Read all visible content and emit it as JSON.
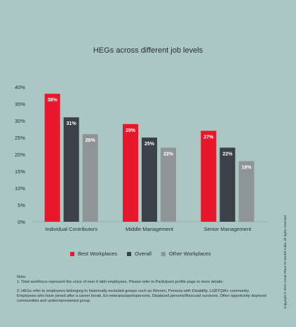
{
  "colors": {
    "background": "#aac7c4",
    "best": "#e8172b",
    "overall": "#3b4148",
    "other": "#8f9597"
  },
  "chart_data": {
    "type": "bar",
    "title": "HEGs across different job levels",
    "categories": [
      "Individual Contributors",
      "Middle Management",
      "Senior Management"
    ],
    "series": [
      {
        "name": "Best Workplaces",
        "values": [
          38,
          29,
          27
        ],
        "labels": [
          "38%",
          "29%",
          "27%"
        ]
      },
      {
        "name": "Overall",
        "values": [
          31,
          25,
          22
        ],
        "labels": [
          "31%",
          "25%",
          "22%"
        ]
      },
      {
        "name": "Other Workplaces",
        "values": [
          26,
          22,
          18
        ],
        "labels": [
          "26%",
          "22%",
          "18%"
        ]
      }
    ],
    "yticks": [
      "0%",
      "5%",
      "10%",
      "15%",
      "20%",
      "25%",
      "30%",
      "35%",
      "40%"
    ],
    "ylim": [
      0,
      40
    ],
    "grid": false,
    "legend_position": "bottom"
  },
  "notes": {
    "heading": "Note:",
    "line1": "1: Total workforce represent the voice of over 6 lakh employees. Please refer to Participant profile page to more details.",
    "line2": "2: HEGs refer to employees belonging to historically excluded groups such as Women, Persons with Disability, LGBTQIA+ community, Employees who have joined after a career break, Ex-veterans/sportspersons, Displaced persons/Rescued survivors, Other opportunity deprived communities and underrepresented group."
  },
  "copyright": "Copyright © 2022 Great Place To Work® India. All rights reserved."
}
